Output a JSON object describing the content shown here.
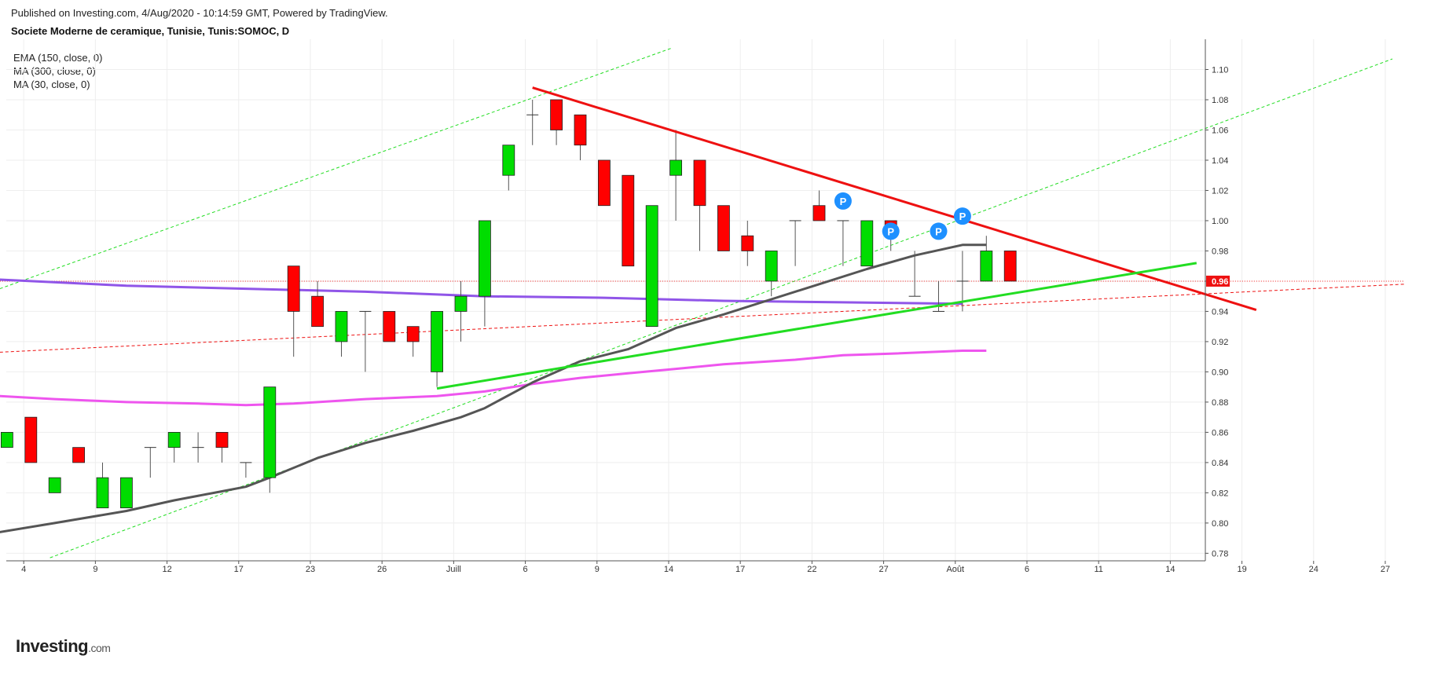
{
  "header": {
    "published": "Published on Investing.com, 4/Aug/2020 - 10:14:59 GMT, Powered by TradingView.",
    "title": "Societe Moderne de ceramique, Tunisie, Tunis:SOMOC, D"
  },
  "legend": {
    "items": [
      "EMA (150, close, 0)",
      "MA (300, close, 0)",
      "MA (30, close, 0)"
    ]
  },
  "logo": {
    "text": "Investing",
    "suffix": ".com"
  },
  "chart_data": {
    "type": "candlestick",
    "title": "Societe Moderne de ceramique, Tunisie, Tunis:SOMOC, D",
    "ylim": [
      0.775,
      1.12
    ],
    "y_ticks": [
      0.78,
      0.8,
      0.82,
      0.84,
      0.86,
      0.88,
      0.9,
      0.92,
      0.94,
      0.96,
      0.98,
      1.0,
      1.02,
      1.04,
      1.06,
      1.08,
      1.1
    ],
    "x_ticks": [
      {
        "label": "4",
        "i": 0.7
      },
      {
        "label": "9",
        "i": 3.7
      },
      {
        "label": "12",
        "i": 6.7
      },
      {
        "label": "17",
        "i": 9.7
      },
      {
        "label": "23",
        "i": 12.7
      },
      {
        "label": "26",
        "i": 15.7
      },
      {
        "label": "Juill",
        "i": 18.7
      },
      {
        "label": "6",
        "i": 21.7
      },
      {
        "label": "9",
        "i": 24.7
      },
      {
        "label": "14",
        "i": 27.7
      },
      {
        "label": "17",
        "i": 30.7
      },
      {
        "label": "22",
        "i": 33.7
      },
      {
        "label": "27",
        "i": 36.7
      },
      {
        "label": "Août",
        "i": 39.7
      },
      {
        "label": "6",
        "i": 42.7
      },
      {
        "label": "11",
        "i": 45.7
      },
      {
        "label": "14",
        "i": 48.7
      },
      {
        "label": "19",
        "i": 51.7
      },
      {
        "label": "24",
        "i": 54.7
      },
      {
        "label": "27",
        "i": 57.7
      }
    ],
    "candles": [
      {
        "o": 0.85,
        "h": 0.86,
        "l": 0.85,
        "c": 0.86
      },
      {
        "o": 0.87,
        "h": 0.87,
        "l": 0.84,
        "c": 0.84
      },
      {
        "o": 0.82,
        "h": 0.83,
        "l": 0.82,
        "c": 0.83
      },
      {
        "o": 0.85,
        "h": 0.85,
        "l": 0.84,
        "c": 0.84
      },
      {
        "o": 0.81,
        "h": 0.84,
        "l": 0.81,
        "c": 0.83
      },
      {
        "o": 0.81,
        "h": 0.83,
        "l": 0.81,
        "c": 0.83
      },
      {
        "o": 0.85,
        "h": 0.85,
        "l": 0.83,
        "c": 0.85
      },
      {
        "o": 0.85,
        "h": 0.86,
        "l": 0.84,
        "c": 0.86
      },
      {
        "o": 0.85,
        "h": 0.86,
        "l": 0.84,
        "c": 0.85
      },
      {
        "o": 0.86,
        "h": 0.86,
        "l": 0.84,
        "c": 0.85
      },
      {
        "o": 0.84,
        "h": 0.84,
        "l": 0.83,
        "c": 0.84
      },
      {
        "o": 0.83,
        "h": 0.89,
        "l": 0.82,
        "c": 0.89
      },
      {
        "o": 0.97,
        "h": 0.97,
        "l": 0.91,
        "c": 0.94
      },
      {
        "o": 0.95,
        "h": 0.96,
        "l": 0.93,
        "c": 0.93
      },
      {
        "o": 0.92,
        "h": 0.94,
        "l": 0.91,
        "c": 0.94
      },
      {
        "o": 0.94,
        "h": 0.94,
        "l": 0.9,
        "c": 0.94
      },
      {
        "o": 0.94,
        "h": 0.94,
        "l": 0.92,
        "c": 0.92
      },
      {
        "o": 0.93,
        "h": 0.93,
        "l": 0.91,
        "c": 0.92
      },
      {
        "o": 0.9,
        "h": 0.94,
        "l": 0.89,
        "c": 0.94
      },
      {
        "o": 0.94,
        "h": 0.96,
        "l": 0.92,
        "c": 0.95
      },
      {
        "o": 0.95,
        "h": 1.0,
        "l": 0.93,
        "c": 1.0
      },
      {
        "o": 1.03,
        "h": 1.05,
        "l": 1.02,
        "c": 1.05
      },
      {
        "o": 1.07,
        "h": 1.08,
        "l": 1.05,
        "c": 1.07
      },
      {
        "o": 1.08,
        "h": 1.08,
        "l": 1.05,
        "c": 1.06
      },
      {
        "o": 1.07,
        "h": 1.07,
        "l": 1.04,
        "c": 1.05
      },
      {
        "o": 1.04,
        "h": 1.04,
        "l": 1.01,
        "c": 1.01
      },
      {
        "o": 1.03,
        "h": 1.03,
        "l": 0.97,
        "c": 0.97
      },
      {
        "o": 0.93,
        "h": 1.01,
        "l": 0.93,
        "c": 1.01
      },
      {
        "o": 1.03,
        "h": 1.06,
        "l": 1.0,
        "c": 1.04
      },
      {
        "o": 1.04,
        "h": 1.04,
        "l": 0.98,
        "c": 1.01
      },
      {
        "o": 1.01,
        "h": 1.01,
        "l": 0.98,
        "c": 0.98
      },
      {
        "o": 0.99,
        "h": 1.0,
        "l": 0.97,
        "c": 0.98
      },
      {
        "o": 0.96,
        "h": 0.98,
        "l": 0.95,
        "c": 0.98
      },
      {
        "o": 1.0,
        "h": 1.0,
        "l": 0.97,
        "c": 1.0
      },
      {
        "o": 1.01,
        "h": 1.02,
        "l": 1.0,
        "c": 1.0
      },
      {
        "o": 1.0,
        "h": 1.0,
        "l": 0.97,
        "c": 1.0
      },
      {
        "o": 0.97,
        "h": 1.0,
        "l": 0.97,
        "c": 1.0
      },
      {
        "o": 1.0,
        "h": 1.0,
        "l": 0.98,
        "c": 0.99
      },
      {
        "o": 0.95,
        "h": 0.98,
        "l": 0.95,
        "c": 0.95
      },
      {
        "o": 0.94,
        "h": 0.96,
        "l": 0.94,
        "c": 0.94
      },
      {
        "o": 0.96,
        "h": 0.98,
        "l": 0.94,
        "c": 0.96
      },
      {
        "o": 0.96,
        "h": 0.99,
        "l": 0.96,
        "c": 0.98
      },
      {
        "o": 0.98,
        "h": 0.98,
        "l": 0.96,
        "c": 0.96
      }
    ],
    "last_price": "0.96",
    "series": [
      {
        "name": "EMA (150, close, 0)",
        "color": "#9055e8",
        "points": [
          [
            -0.3,
            0.961
          ],
          [
            5,
            0.957
          ],
          [
            10,
            0.955
          ],
          [
            15,
            0.953
          ],
          [
            20,
            0.95
          ],
          [
            25,
            0.949
          ],
          [
            30,
            0.947
          ],
          [
            35,
            0.946
          ],
          [
            40,
            0.945
          ]
        ]
      },
      {
        "name": "MA (300, close, 0)",
        "color": "#ee55ee",
        "points": [
          [
            -0.3,
            0.884
          ],
          [
            2,
            0.882
          ],
          [
            5,
            0.88
          ],
          [
            8,
            0.879
          ],
          [
            10,
            0.878
          ],
          [
            12,
            0.879
          ],
          [
            15,
            0.882
          ],
          [
            18,
            0.884
          ],
          [
            20,
            0.887
          ],
          [
            22,
            0.892
          ],
          [
            24,
            0.896
          ],
          [
            26,
            0.899
          ],
          [
            28,
            0.902
          ],
          [
            30,
            0.905
          ],
          [
            33,
            0.908
          ],
          [
            35,
            0.911
          ],
          [
            37,
            0.912
          ],
          [
            40,
            0.914
          ],
          [
            41,
            0.914
          ]
        ]
      },
      {
        "name": "MA (30, close, 0)",
        "color": "#555555",
        "points": [
          [
            -0.3,
            0.794
          ],
          [
            2,
            0.8
          ],
          [
            5,
            0.808
          ],
          [
            7,
            0.815
          ],
          [
            9,
            0.821
          ],
          [
            10,
            0.824
          ],
          [
            11,
            0.83
          ],
          [
            13,
            0.843
          ],
          [
            15,
            0.853
          ],
          [
            17,
            0.861
          ],
          [
            19,
            0.87
          ],
          [
            20,
            0.876
          ],
          [
            22,
            0.893
          ],
          [
            24,
            0.907
          ],
          [
            26,
            0.915
          ],
          [
            28,
            0.929
          ],
          [
            30,
            0.938
          ],
          [
            32,
            0.948
          ],
          [
            34,
            0.958
          ],
          [
            36,
            0.968
          ],
          [
            38,
            0.977
          ],
          [
            40,
            0.984
          ],
          [
            41,
            0.984
          ]
        ]
      }
    ],
    "trendlines": [
      {
        "kind": "resistance",
        "color": "#ee1111",
        "from": [
          22,
          1.088
        ],
        "to": [
          52.3,
          0.941
        ]
      },
      {
        "kind": "support",
        "color": "#22dd22",
        "from": [
          18,
          0.889
        ],
        "to": [
          49.8,
          0.972
        ]
      },
      {
        "kind": "channel_upper",
        "color": "#22dd22",
        "dashed": true,
        "from": [
          -0.3,
          0.955
        ],
        "to": [
          27.8,
          1.114
        ]
      },
      {
        "kind": "channel_lower",
        "color": "#22dd22",
        "dashed": true,
        "from": [
          1.8,
          0.777
        ],
        "to": [
          58,
          1.107
        ]
      },
      {
        "kind": "horizontal_price",
        "color": "#ee1111",
        "dotted": true,
        "from": [
          -0.3,
          0.96
        ],
        "to": [
          58.5,
          0.96
        ]
      },
      {
        "kind": "slanted",
        "color": "#ee1111",
        "dashed": true,
        "from": [
          -0.3,
          0.913
        ],
        "to": [
          58.5,
          0.958
        ]
      }
    ],
    "markers": [
      {
        "label": "P",
        "i": 35,
        "y": 1.013
      },
      {
        "label": "P",
        "i": 37,
        "y": 0.993
      },
      {
        "label": "P",
        "i": 39,
        "y": 0.993
      },
      {
        "label": "P",
        "i": 40,
        "y": 1.003
      }
    ]
  }
}
